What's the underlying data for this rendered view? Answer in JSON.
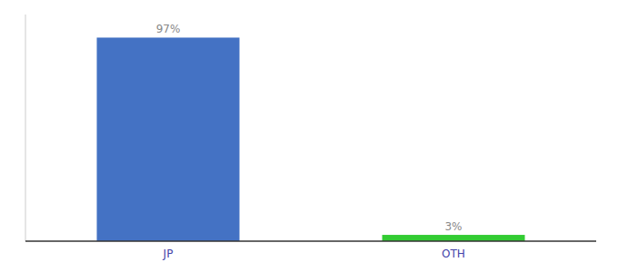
{
  "chart_data": {
    "type": "bar",
    "categories": [
      "JP",
      "OTH"
    ],
    "values": [
      97,
      3
    ],
    "value_labels": [
      "97%",
      "3%"
    ],
    "colors": [
      "#4472c4",
      "#33cc33"
    ],
    "ylim": [
      0,
      108
    ],
    "data_labels": true,
    "tick_labels": "x"
  }
}
